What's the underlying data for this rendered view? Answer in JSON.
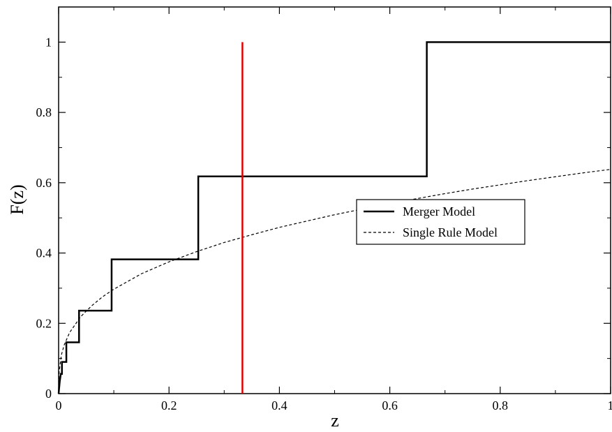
{
  "chart_data": {
    "type": "line",
    "title": "",
    "xlabel": "z",
    "ylabel": "F(z)",
    "xlim": [
      0,
      1
    ],
    "ylim": [
      0,
      1.1
    ],
    "x_ticks": [
      0,
      0.2,
      0.4,
      0.6,
      0.8,
      1
    ],
    "x_tick_labels": [
      "0",
      "0.2",
      "0.4",
      "0.6",
      "0.8",
      "1"
    ],
    "y_ticks": [
      0,
      0.2,
      0.4,
      0.6,
      0.8,
      1
    ],
    "y_tick_labels": [
      "0",
      "0.2",
      "0.4",
      "0.6",
      "0.8",
      "1"
    ],
    "grid": false,
    "legend_position": "center-right",
    "series": [
      {
        "name": "Merger Model",
        "style": "solid",
        "color": "#000000",
        "points": [
          [
            0.0,
            0.0
          ],
          [
            0.002,
            0.034
          ],
          [
            0.002,
            0.034
          ],
          [
            0.004,
            0.056
          ],
          [
            0.006,
            0.056
          ],
          [
            0.006,
            0.09
          ],
          [
            0.014,
            0.09
          ],
          [
            0.014,
            0.146
          ],
          [
            0.037,
            0.146
          ],
          [
            0.037,
            0.236
          ],
          [
            0.096,
            0.236
          ],
          [
            0.096,
            0.382
          ],
          [
            0.253,
            0.382
          ],
          [
            0.253,
            0.618
          ],
          [
            0.667,
            0.618
          ],
          [
            0.667,
            1.0
          ],
          [
            1.0,
            1.0
          ]
        ]
      },
      {
        "name": "Single Rule Model",
        "style": "dashed",
        "color": "#000000",
        "points": [
          [
            0.0,
            0.0
          ],
          [
            0.001,
            0.063
          ],
          [
            0.005,
            0.11
          ],
          [
            0.01,
            0.138
          ],
          [
            0.02,
            0.174
          ],
          [
            0.04,
            0.219
          ],
          [
            0.06,
            0.25
          ],
          [
            0.08,
            0.276
          ],
          [
            0.1,
            0.297
          ],
          [
            0.15,
            0.341
          ],
          [
            0.2,
            0.375
          ],
          [
            0.25,
            0.404
          ],
          [
            0.3,
            0.43
          ],
          [
            0.35,
            0.452
          ],
          [
            0.4,
            0.473
          ],
          [
            0.45,
            0.491
          ],
          [
            0.5,
            0.509
          ],
          [
            0.55,
            0.525
          ],
          [
            0.6,
            0.541
          ],
          [
            0.65,
            0.555
          ],
          [
            0.7,
            0.569
          ],
          [
            0.75,
            0.582
          ],
          [
            0.8,
            0.594
          ],
          [
            0.85,
            0.606
          ],
          [
            0.9,
            0.617
          ],
          [
            0.95,
            0.628
          ],
          [
            1.0,
            0.638
          ]
        ]
      }
    ],
    "reference_line": {
      "x": 0.333,
      "y_range": [
        0,
        1
      ],
      "color": "#e00000"
    }
  }
}
